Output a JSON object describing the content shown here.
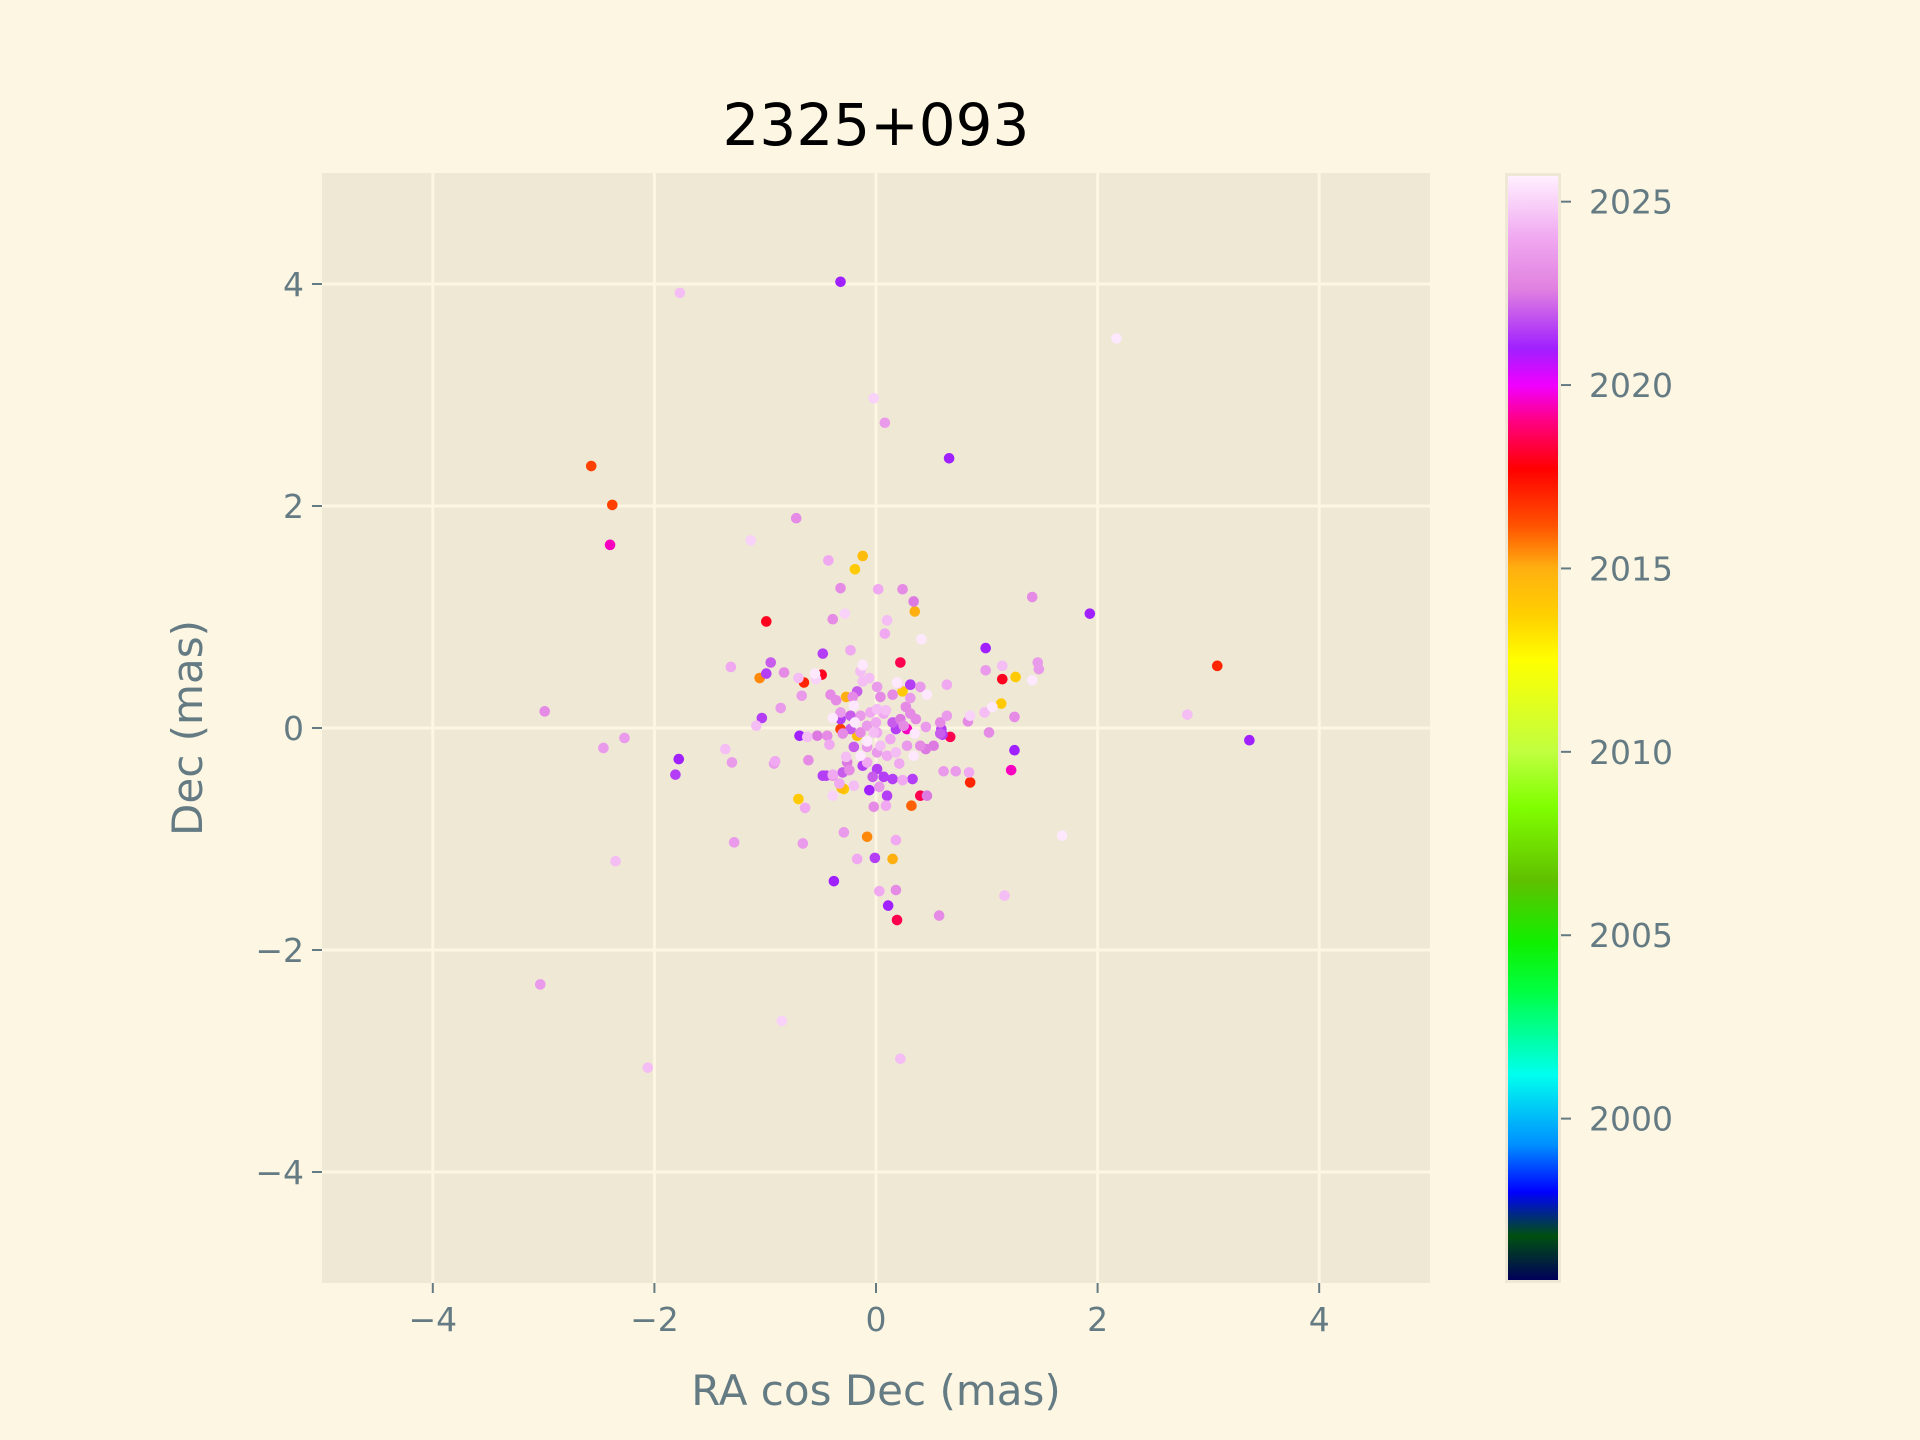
{
  "chart_data": {
    "type": "scatter",
    "title": "2325+093",
    "xlabel": "RA cos Dec (mas)",
    "ylabel": "Dec (mas)",
    "xlim": [
      -5,
      5
    ],
    "ylim": [
      -5,
      5
    ],
    "xticks": [
      -4,
      -2,
      0,
      2,
      4
    ],
    "yticks": [
      -4,
      -2,
      0,
      2,
      4
    ],
    "xtick_labels": [
      "−4",
      "−2",
      "0",
      "2",
      "4"
    ],
    "ytick_labels": [
      "−4",
      "−2",
      "0",
      "2",
      "4"
    ],
    "grid": true,
    "colorbar": {
      "label": "",
      "range": [
        1995.6,
        2025.7
      ],
      "ticks": [
        2000,
        2005,
        2010,
        2015,
        2020,
        2025
      ],
      "tick_labels": [
        "2000",
        "2005",
        "2010",
        "2015",
        "2020",
        "2025"
      ],
      "colormap_stops": [
        [
          1995.6,
          "#00005a"
        ],
        [
          1996.8,
          "#005010"
        ],
        [
          1998.0,
          "#0000ff"
        ],
        [
          1999.3,
          "#0090ff"
        ],
        [
          2001.2,
          "#00ffee"
        ],
        [
          2003.5,
          "#00ff40"
        ],
        [
          2004.8,
          "#10f000"
        ],
        [
          2006.5,
          "#60c000"
        ],
        [
          2008.5,
          "#80ff00"
        ],
        [
          2010.0,
          "#c0ff40"
        ],
        [
          2012.5,
          "#ffff00"
        ],
        [
          2013.7,
          "#ffd000"
        ],
        [
          2015.0,
          "#ffb010"
        ],
        [
          2016.2,
          "#ff5000"
        ],
        [
          2017.7,
          "#ff0000"
        ],
        [
          2019.0,
          "#ff0080"
        ],
        [
          2020.0,
          "#f000ff"
        ],
        [
          2021.0,
          "#a020ff"
        ],
        [
          2022.6,
          "#e080e0"
        ],
        [
          2024.0,
          "#f0a8f0"
        ],
        [
          2025.7,
          "#fff0ff"
        ]
      ]
    },
    "points_fields": [
      "ra_cos_dec_mas",
      "dec_mas",
      "epoch_year"
    ],
    "points": [
      [
        -0.32,
        4.02,
        2021
      ],
      [
        -1.77,
        3.92,
        2024.5
      ],
      [
        2.17,
        3.51,
        2025.5
      ],
      [
        -0.02,
        2.97,
        2025
      ],
      [
        0.08,
        2.75,
        2023.5
      ],
      [
        0.66,
        2.43,
        2021
      ],
      [
        -2.57,
        2.36,
        2016.5
      ],
      [
        -2.38,
        2.01,
        2016.5
      ],
      [
        -2.4,
        1.65,
        2019.5
      ],
      [
        -0.72,
        1.89,
        2023
      ],
      [
        -1.13,
        1.69,
        2025
      ],
      [
        -0.12,
        1.55,
        2014.5
      ],
      [
        -0.43,
        1.51,
        2024
      ],
      [
        -0.19,
        1.43,
        2014
      ],
      [
        0.24,
        1.25,
        2023
      ],
      [
        0.02,
        1.25,
        2024
      ],
      [
        -0.32,
        1.26,
        2023
      ],
      [
        0.34,
        1.14,
        2022.5
      ],
      [
        0.35,
        1.05,
        2015
      ],
      [
        -0.28,
        1.03,
        2025
      ],
      [
        1.41,
        1.18,
        2023
      ],
      [
        1.93,
        1.03,
        2021
      ],
      [
        -0.99,
        0.96,
        2018
      ],
      [
        -0.39,
        0.98,
        2023
      ],
      [
        0.1,
        0.97,
        2024.5
      ],
      [
        0.08,
        0.85,
        2024
      ],
      [
        0.41,
        0.8,
        2025.5
      ],
      [
        -0.48,
        0.67,
        2021.5
      ],
      [
        -0.23,
        0.7,
        2024
      ],
      [
        3.08,
        0.56,
        2017
      ],
      [
        0.99,
        0.72,
        2021
      ],
      [
        0.22,
        0.59,
        2018.5
      ],
      [
        -1.31,
        0.55,
        2024
      ],
      [
        -0.95,
        0.59,
        2022
      ],
      [
        -0.99,
        0.49,
        2021.5
      ],
      [
        -1.05,
        0.45,
        2015.5
      ],
      [
        -0.83,
        0.5,
        2023
      ],
      [
        -0.65,
        0.41,
        2017
      ],
      [
        -0.49,
        0.48,
        2018
      ],
      [
        -0.54,
        0.44,
        2025
      ],
      [
        -0.12,
        0.56,
        2025
      ],
      [
        1.14,
        0.44,
        2018
      ],
      [
        1.14,
        0.56,
        2024.5
      ],
      [
        1.46,
        0.59,
        2023.5
      ],
      [
        1.47,
        0.53,
        2023.5
      ],
      [
        1.41,
        0.43,
        2025.5
      ],
      [
        1.26,
        0.46,
        2014
      ],
      [
        0.99,
        0.52,
        2023.5
      ],
      [
        0.64,
        0.39,
        2024
      ],
      [
        0.31,
        0.39,
        2021
      ],
      [
        0.2,
        0.4,
        2025
      ],
      [
        -2.99,
        0.15,
        2023
      ],
      [
        2.81,
        0.12,
        2024.5
      ],
      [
        3.37,
        -0.11,
        2021
      ],
      [
        1.13,
        0.22,
        2014
      ],
      [
        1.05,
        0.19,
        2025.5
      ],
      [
        1.25,
        0.1,
        2023
      ],
      [
        0.98,
        0.14,
        2024.5
      ],
      [
        0.85,
        0.11,
        2025
      ],
      [
        0.83,
        0.06,
        2023
      ],
      [
        1.02,
        -0.04,
        2023
      ],
      [
        0.67,
        -0.08,
        2018.5
      ],
      [
        0.59,
        -0.01,
        2021.5
      ],
      [
        1.25,
        -0.2,
        2021
      ],
      [
        1.22,
        -0.38,
        2019.5
      ],
      [
        0.85,
        -0.49,
        2017
      ],
      [
        0.61,
        -0.39,
        2023.5
      ],
      [
        0.72,
        -0.39,
        2023.5
      ],
      [
        0.84,
        -0.4,
        2024
      ],
      [
        0.46,
        -0.61,
        2022.5
      ],
      [
        0.4,
        -0.61,
        2018.5
      ],
      [
        0.33,
        -0.46,
        2021.5
      ],
      [
        0.32,
        -0.7,
        2016
      ],
      [
        0.1,
        -0.61,
        2021.5
      ],
      [
        0.09,
        -0.7,
        2024
      ],
      [
        -0.02,
        -0.71,
        2023
      ],
      [
        1.68,
        -0.97,
        2025.5
      ],
      [
        0.18,
        -1.01,
        2024
      ],
      [
        -0.08,
        -0.98,
        2015.5
      ],
      [
        -0.29,
        -0.94,
        2023.5
      ],
      [
        -0.7,
        -0.64,
        2014
      ],
      [
        -0.64,
        -0.72,
        2024
      ],
      [
        -0.66,
        -1.04,
        2023.5
      ],
      [
        -1.28,
        -1.03,
        2023.5
      ],
      [
        -0.01,
        -1.17,
        2021.5
      ],
      [
        0.15,
        -1.18,
        2015
      ],
      [
        -0.17,
        -1.18,
        2024
      ],
      [
        -0.38,
        -1.38,
        2021
      ],
      [
        0.03,
        -1.47,
        2024
      ],
      [
        0.18,
        -1.46,
        2023
      ],
      [
        0.11,
        -1.6,
        2021
      ],
      [
        1.16,
        -1.51,
        2024.5
      ],
      [
        0.19,
        -1.73,
        2018.5
      ],
      [
        0.57,
        -1.69,
        2023
      ],
      [
        -2.35,
        -1.2,
        2024.5
      ],
      [
        -3.03,
        -2.31,
        2023.5
      ],
      [
        -0.85,
        -2.64,
        2025
      ],
      [
        0.22,
        -2.98,
        2024.5
      ],
      [
        -2.06,
        -3.06,
        2024.5
      ],
      [
        -2.46,
        -0.18,
        2023.5
      ],
      [
        -2.27,
        -0.09,
        2023.5
      ],
      [
        -1.78,
        -0.28,
        2021
      ],
      [
        -1.81,
        -0.42,
        2021.5
      ],
      [
        -1.36,
        -0.19,
        2024.5
      ],
      [
        -1.3,
        -0.31,
        2023.5
      ],
      [
        -0.91,
        -0.3,
        2024
      ],
      [
        -0.92,
        -0.32,
        2023.5
      ],
      [
        -0.86,
        0.18,
        2023.5
      ],
      [
        -1.03,
        0.09,
        2021.5
      ],
      [
        -1.08,
        0.02,
        2024.5
      ],
      [
        -0.69,
        -0.07,
        2021
      ],
      [
        -0.61,
        -0.29,
        2023
      ],
      [
        -0.48,
        -0.43,
        2021.5
      ],
      [
        -0.39,
        -0.42,
        2024
      ],
      [
        -0.31,
        -0.54,
        2014.5
      ],
      [
        -0.67,
        0.29,
        2023.5
      ],
      [
        -0.2,
        0.2,
        2025.5
      ],
      [
        -0.39,
        0.09,
        2025.5
      ],
      [
        -0.19,
        0.05,
        2025.5
      ],
      [
        -0.08,
        -0.12,
        2025.5
      ],
      [
        -0.14,
        -0.25,
        2025.5
      ],
      [
        -0.27,
        -0.26,
        2024.5
      ],
      [
        0.18,
        -0.22,
        2024.5
      ],
      [
        0.34,
        -0.25,
        2025.5
      ],
      [
        0.35,
        -0.05,
        2025.5
      ],
      [
        0.19,
        0.41,
        2025.5
      ],
      [
        0.46,
        0.3,
        2025.5
      ],
      [
        -0.12,
        0.57,
        2025.5
      ],
      [
        -0.55,
        0.49,
        2025.5
      ],
      [
        -0.7,
        0.45,
        2024.5
      ],
      [
        0.01,
        -0.04,
        2024
      ],
      [
        0.07,
        0.13,
        2024
      ],
      [
        0.0,
        0.05,
        2024
      ],
      [
        0.13,
        -0.1,
        2024
      ],
      [
        0.04,
        -0.16,
        2024.5
      ],
      [
        0.1,
        -0.25,
        2024
      ],
      [
        0.21,
        -0.32,
        2024
      ],
      [
        0.28,
        -0.16,
        2023.5
      ],
      [
        0.4,
        -0.16,
        2023
      ],
      [
        0.45,
        -0.19,
        2022.5
      ],
      [
        0.58,
        -0.05,
        2022
      ],
      [
        0.64,
        0.11,
        2023.5
      ],
      [
        0.58,
        0.05,
        2023
      ],
      [
        0.45,
        0.01,
        2023.5
      ],
      [
        0.36,
        0.08,
        2023
      ],
      [
        0.31,
        0.13,
        2023
      ],
      [
        0.25,
        0.02,
        2023
      ],
      [
        0.22,
        0.08,
        2022.5
      ],
      [
        0.15,
        0.05,
        2022
      ],
      [
        0.18,
        -0.01,
        2021.5
      ],
      [
        0.28,
        -0.01,
        2019.5
      ],
      [
        0.27,
        0.19,
        2023
      ],
      [
        0.31,
        0.27,
        2023.5
      ],
      [
        0.31,
        0.39,
        2021.5
      ],
      [
        0.4,
        0.37,
        2023.5
      ],
      [
        0.24,
        0.33,
        2014
      ],
      [
        0.15,
        0.3,
        2023
      ],
      [
        0.04,
        0.28,
        2023
      ],
      [
        0.01,
        0.37,
        2023.5
      ],
      [
        -0.06,
        0.45,
        2024.5
      ],
      [
        -0.12,
        0.42,
        2024.5
      ],
      [
        -0.14,
        0.51,
        2024.5
      ],
      [
        -0.17,
        0.33,
        2022
      ],
      [
        -0.21,
        0.28,
        2023
      ],
      [
        -0.36,
        0.25,
        2023
      ],
      [
        -0.41,
        0.3,
        2023
      ],
      [
        -0.27,
        0.28,
        2015
      ],
      [
        -0.32,
        0.14,
        2023.5
      ],
      [
        -0.23,
        0.11,
        2022
      ],
      [
        -0.32,
        0.08,
        2021.5
      ],
      [
        -0.14,
        0.11,
        2023.5
      ],
      [
        -0.05,
        0.14,
        2024
      ],
      [
        0.01,
        0.17,
        2024.5
      ],
      [
        0.09,
        0.16,
        2024.5
      ],
      [
        -0.08,
        0.02,
        2023.5
      ],
      [
        -0.02,
        -0.04,
        2024.5
      ],
      [
        -0.14,
        -0.04,
        2023
      ],
      [
        -0.23,
        -0.01,
        2022
      ],
      [
        -0.32,
        -0.01,
        2016.5
      ],
      [
        -0.3,
        -0.05,
        2023
      ],
      [
        -0.44,
        -0.07,
        2023
      ],
      [
        -0.53,
        -0.07,
        2022.5
      ],
      [
        -0.62,
        -0.08,
        2024.5
      ],
      [
        -0.42,
        -0.15,
        2024
      ],
      [
        -0.17,
        -0.07,
        2014.5
      ],
      [
        -0.2,
        -0.17,
        2022
      ],
      [
        -0.08,
        -0.17,
        2023.5
      ],
      [
        0.01,
        -0.22,
        2023.5
      ],
      [
        -0.08,
        -0.31,
        2024
      ],
      [
        -0.26,
        -0.31,
        2022.5
      ],
      [
        -0.24,
        -0.38,
        2023
      ],
      [
        -0.12,
        -0.34,
        2021.5
      ],
      [
        -0.45,
        -0.43,
        2021.5
      ],
      [
        -0.39,
        -0.43,
        2023
      ],
      [
        -0.3,
        -0.4,
        2022
      ],
      [
        -0.33,
        -0.5,
        2024
      ],
      [
        -0.29,
        -0.55,
        2014
      ],
      [
        -0.2,
        -0.52,
        2024.5
      ],
      [
        -0.39,
        -0.61,
        2025
      ],
      [
        0.01,
        -0.37,
        2021.5
      ],
      [
        -0.03,
        -0.44,
        2022
      ],
      [
        0.07,
        -0.44,
        2021.5
      ],
      [
        0.15,
        -0.46,
        2021.5
      ],
      [
        0.24,
        -0.47,
        2024
      ],
      [
        0.03,
        -0.53,
        2023.5
      ],
      [
        -0.06,
        -0.56,
        2021
      ],
      [
        0.52,
        -0.16,
        2022.5
      ],
      [
        0.6,
        -0.06,
        2021.5
      ]
    ]
  },
  "colors": {
    "background": "#fdf6e3",
    "axes_background": "#eee8d5",
    "grid": "#fdf6e3",
    "tick_text": "#657b83"
  }
}
